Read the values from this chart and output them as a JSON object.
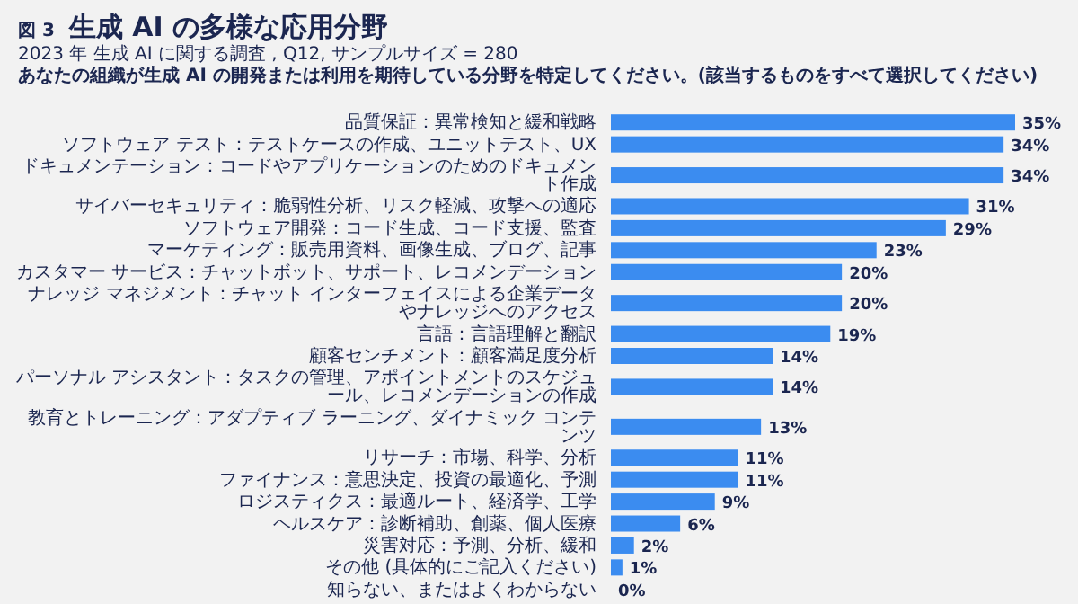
{
  "chart_data": {
    "type": "bar",
    "orientation": "horizontal",
    "title": "生成 AI の多様な応用分野",
    "subtitle": "2023 年 生成 AI に関する調査 , Q12, サンプルサイズ = 280",
    "annotations": [
      "図 3",
      "あなたの組織が生成 AI の開発または利用を期待している分野を特定してください。(該当するものをすべて選択してください)"
    ],
    "categories": [
      "品質保証：異常検知と緩和戦略",
      "ソフトウェア テスト：テストケースの作成、ユニットテスト、UX",
      "ドキュメンテーション：コードやアプリケーションのためのドキュメント作成",
      "サイバーセキュリティ：脆弱性分析、リスク軽減、攻撃への適応",
      "ソフトウェア開発：コード生成、コード支援、監査",
      "マーケティング：販売用資料、画像生成、ブログ、記事",
      "カスタマー サービス：チャットボット、サポート、レコメンデーション",
      "ナレッジ マネジメント：チャット インターフェイスによる企業データやナレッジへのアクセス",
      "言語：言語理解と翻訳",
      "顧客センチメント：顧客満足度分析",
      "パーソナル アシスタント：タスクの管理、アポイントメントのスケジュール、レコメンデーションの作成",
      "教育とトレーニング：アダプティブ ラーニング、ダイナミック コンテンツ",
      "リサーチ：市場、科学、分析",
      "ファイナンス：意思決定、投資の最適化、予測",
      "ロジスティクス：最適ルート、経済学、工学",
      "ヘルスケア：診断補助、創薬、個人医療",
      "災害対応：予測、分析、緩和",
      "その他 (具体的にご記入ください)",
      "知らない、またはよくわからない"
    ],
    "values": [
      35,
      34,
      34,
      31,
      29,
      23,
      20,
      20,
      19,
      14,
      14,
      13,
      11,
      11,
      9,
      6,
      2,
      1,
      0
    ],
    "value_labels": [
      "35%",
      "34%",
      "34%",
      "31%",
      "29%",
      "23%",
      "20%",
      "20%",
      "19%",
      "14%",
      "14%",
      "13%",
      "11%",
      "11%",
      "9%",
      "6%",
      "2%",
      "1%",
      "0%"
    ],
    "color": "#3b8cf0"
  }
}
